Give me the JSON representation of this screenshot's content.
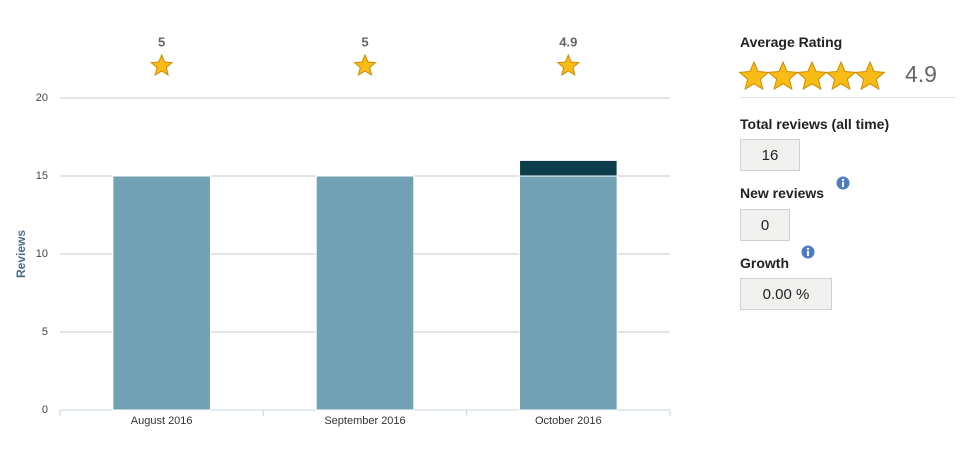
{
  "chart_data": {
    "type": "bar",
    "stacked": true,
    "categories": [
      "August 2016",
      "September 2016",
      "October 2016"
    ],
    "series": [
      {
        "color": "#72a0b4",
        "values": [
          15,
          15,
          15
        ]
      },
      {
        "color": "#0d3d4a",
        "values": [
          0,
          0,
          1
        ]
      }
    ],
    "ratings": [
      5,
      5,
      4.9
    ],
    "ylabel": "Reviews",
    "ylim": [
      0,
      20
    ],
    "yticks": [
      0,
      5,
      10,
      15,
      20
    ],
    "grid": true
  },
  "sidebar": {
    "average_rating": {
      "label": "Average Rating",
      "value": 4.9
    },
    "total_reviews": {
      "label": "Total reviews (all time)",
      "value": 16
    },
    "new_reviews": {
      "label": "New reviews",
      "value": 0
    },
    "growth": {
      "label": "Growth",
      "value": "0.00 %"
    }
  }
}
